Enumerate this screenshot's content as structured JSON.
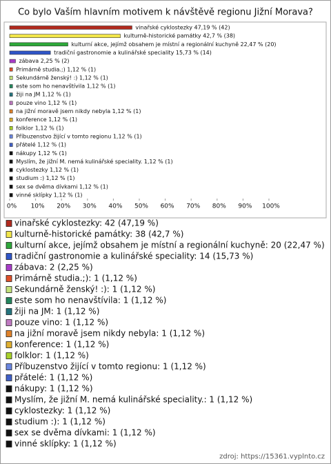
{
  "chart_data": {
    "type": "bar",
    "orientation": "horizontal",
    "title": "Co bylo Vaším hlavním motivem k návštěvě regionu Jižní Morava?",
    "values": [
      47.19,
      42.7,
      22.47,
      15.73,
      2.25,
      1.12,
      1.12,
      1.12,
      1.12,
      1.12,
      1.12,
      1.12,
      1.12,
      1.12,
      1.12,
      1.12,
      1.12,
      1.12,
      1.12,
      1.12,
      1.12
    ],
    "value_labels": [
      "vinařské cyklostezky 47,19 % (42)",
      "kulturně-historické památky 42,7 % (38)",
      "kulturní akce, jejímž obsahem je místní a regionální kuchyně 22,47 % (20)",
      "tradiční gastronomie a kulinářské speciality 15,73 % (14)",
      "zábava 2,25 % (2)",
      "Primárně studia.;) 1,12 % (1)",
      "Sekundárně ženský! :) 1,12 % (1)",
      "este som ho nenavštívila 1,12 % (1)",
      "žiji na JM 1,12 % (1)",
      "pouze vino 1,12 % (1)",
      "na jižní moravě jsem nikdy nebyla 1,12 % (1)",
      "konference 1,12 % (1)",
      "folklor 1,12 % (1)",
      "Příbuzenstvo žijící v tomto regionu 1,12 % (1)",
      "přátelé 1,12 % (1)",
      "nákupy 1,12 % (1)",
      "Myslím, že jižní M. nemá kulinářské speciality. 1,12 % (1)",
      "cyklostezky 1,12 % (1)",
      "studium :) 1,12 % (1)",
      "sex se dvěma dívkami 1,12 % (1)",
      "vinné sklípky 1,12 % (1)"
    ],
    "legend_labels": [
      "vinařské cyklostezky: 42 (47,19 %)",
      "kulturně-historické památky: 38 (42,7 %)",
      "kulturní akce, jejímž obsahem je místní a regionální kuchyně: 20 (22,47 %)",
      "tradiční gastronomie a kulinářské speciality: 14 (15,73 %)",
      "zábava: 2 (2,25 %)",
      "Primárně studia.;): 1 (1,12 %)",
      "Sekundárně ženský! :): 1 (1,12 %)",
      "este som ho nenavštívila: 1 (1,12 %)",
      "žiji na JM: 1 (1,12 %)",
      "pouze vino: 1 (1,12 %)",
      "na jižní moravě jsem nikdy nebyla: 1 (1,12 %)",
      "konference: 1 (1,12 %)",
      "folklor: 1 (1,12 %)",
      "Příbuzenstvo žijící v tomto regionu: 1 (1,12 %)",
      "přátelé: 1 (1,12 %)",
      "nákupy: 1 (1,12 %)",
      "Myslím, že jižní M. nemá kulinářské speciality.: 1 (1,12 %)",
      "cyklostezky: 1 (1,12 %)",
      "studium :): 1 (1,12 %)",
      "sex se dvěma dívkami: 1 (1,12 %)",
      "vinné sklípky: 1 (1,12 %)"
    ],
    "colors": [
      "#b22a1e",
      "#f2e64a",
      "#2ea83a",
      "#2f55c8",
      "#a83cc8",
      "#e0502a",
      "#c4e27a",
      "#23875e",
      "#24747e",
      "#c07ac2",
      "#e0822a",
      "#e0b030",
      "#a8d22a",
      "#6a86e0",
      "#4060c8",
      "#111111",
      "#111111",
      "#111111",
      "#111111",
      "#111111",
      "#111111"
    ],
    "xlim": [
      0,
      100
    ],
    "xticks": [
      {
        "value": 0,
        "label": "0%"
      },
      {
        "value": 10,
        "label": "10%"
      },
      {
        "value": 20,
        "label": "20%"
      },
      {
        "value": 30,
        "label": "30%"
      },
      {
        "value": 40,
        "label": "40%"
      },
      {
        "value": 50,
        "label": "50%"
      },
      {
        "value": 60,
        "label": "60%"
      },
      {
        "value": 70,
        "label": "70%"
      },
      {
        "value": 80,
        "label": "80%"
      },
      {
        "value": 90,
        "label": "90%"
      },
      {
        "value": 100,
        "label": "100%"
      }
    ],
    "source": "zdroj: https://15361.vyplnto.cz"
  }
}
